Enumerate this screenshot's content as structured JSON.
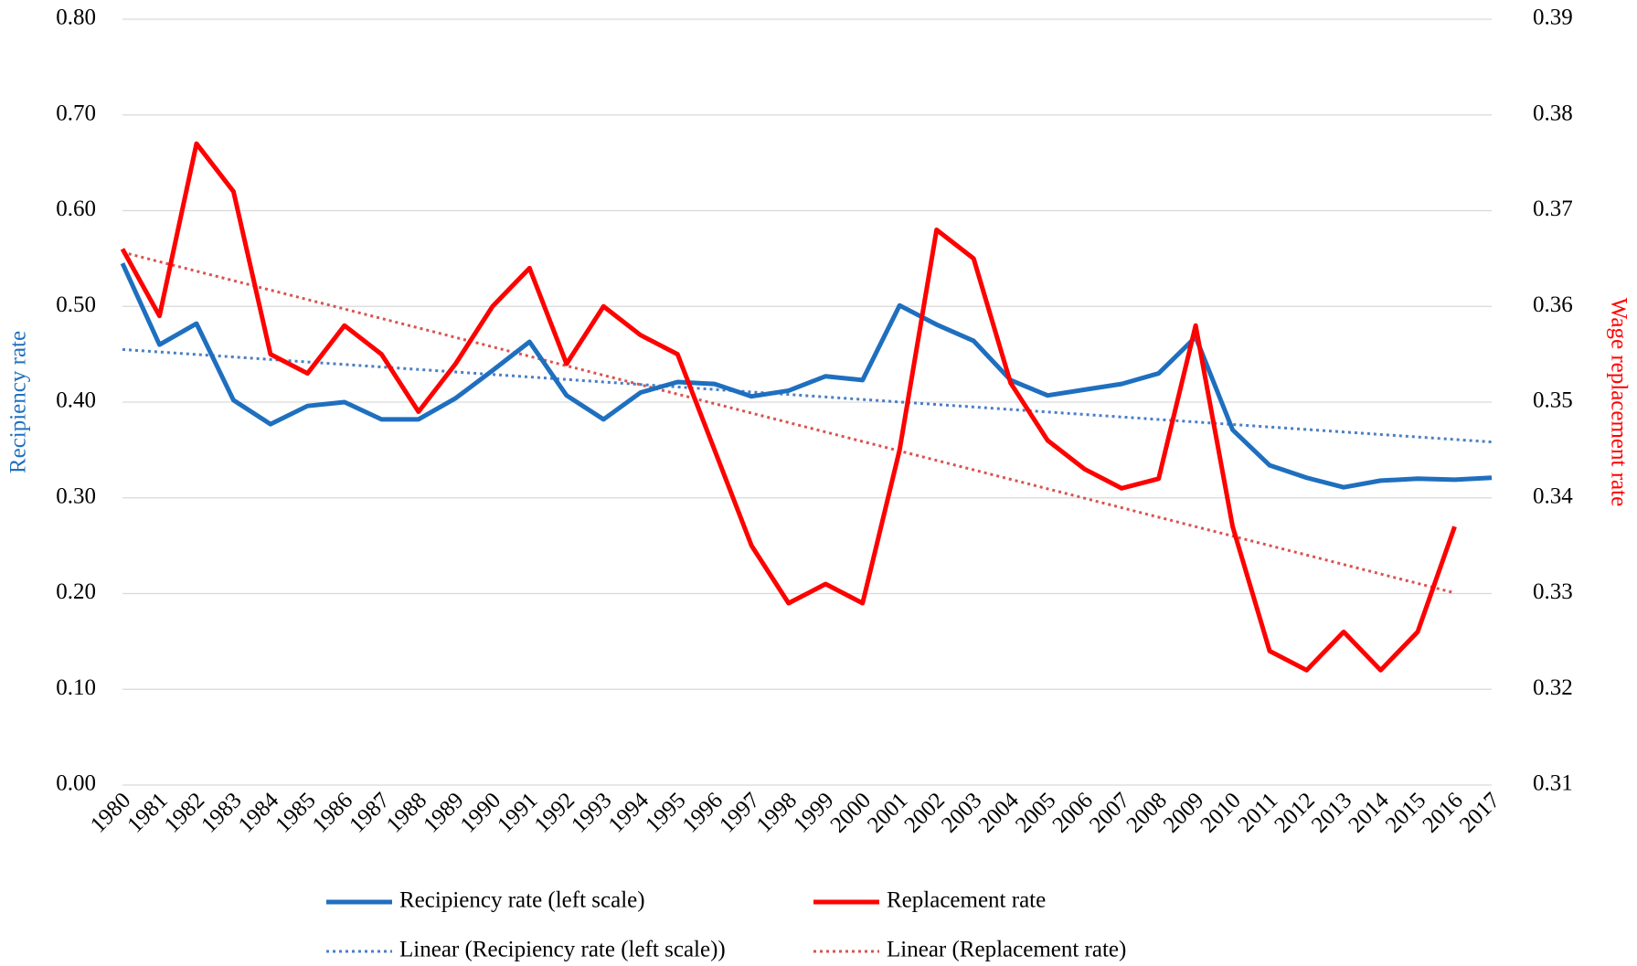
{
  "chart_data": {
    "type": "line",
    "categories": [
      "1980",
      "1981",
      "1982",
      "1983",
      "1984",
      "1985",
      "1986",
      "1987",
      "1988",
      "1989",
      "1990",
      "1991",
      "1992",
      "1993",
      "1994",
      "1995",
      "1996",
      "1997",
      "1998",
      "1999",
      "2000",
      "2001",
      "2002",
      "2003",
      "2004",
      "2005",
      "2006",
      "2007",
      "2008",
      "2009",
      "2010",
      "2011",
      "2012",
      "2013",
      "2014",
      "2015",
      "2016",
      "2017"
    ],
    "y_label": "Recipiency rate",
    "y2_label": "Wage replacement rate",
    "ylim": [
      0,
      0.8
    ],
    "yticks": [
      {
        "value": 0,
        "label": "0.00"
      },
      {
        "value": 0.1,
        "label": "0.10"
      },
      {
        "value": 0.2,
        "label": "0.20"
      },
      {
        "value": 0.3,
        "label": "0.30"
      },
      {
        "value": 0.4,
        "label": "0.40"
      },
      {
        "value": 0.5,
        "label": "0.50"
      },
      {
        "value": 0.6,
        "label": "0.60"
      },
      {
        "value": 0.7,
        "label": "0.70"
      },
      {
        "value": 0.8,
        "label": "0.80"
      }
    ],
    "y2lim": [
      0.31,
      0.39
    ],
    "y2ticks": [
      0.31,
      0.32,
      0.33,
      0.34,
      0.35,
      0.36,
      0.37,
      0.38,
      0.39
    ],
    "grid": true,
    "series": [
      {
        "name": "Recipiency rate (left scale)",
        "color": "#1f6fbf",
        "axis": "y",
        "values": [
          0.545,
          0.46,
          0.482,
          0.402,
          0.377,
          0.396,
          0.4,
          0.382,
          0.382,
          0.404,
          0.433,
          0.463,
          0.407,
          0.382,
          0.41,
          0.421,
          0.419,
          0.406,
          0.412,
          0.427,
          0.423,
          0.501,
          0.481,
          0.464,
          0.423,
          0.407,
          0.413,
          0.419,
          0.43,
          0.468,
          0.371,
          0.334,
          0.321,
          0.311,
          0.318,
          0.32,
          0.319,
          0.321
        ]
      },
      {
        "name": "Replacement rate",
        "color": "#ff0000",
        "axis": "y2",
        "values": [
          0.366,
          0.359,
          0.377,
          0.372,
          0.355,
          0.353,
          0.358,
          0.355,
          0.349,
          0.354,
          0.36,
          0.364,
          0.354,
          0.36,
          0.357,
          0.355,
          0.345,
          0.335,
          0.329,
          0.331,
          0.329,
          0.345,
          0.368,
          0.365,
          0.352,
          0.346,
          0.343,
          0.341,
          0.342,
          0.358,
          0.337,
          0.324,
          0.322,
          0.326,
          0.322,
          0.326,
          0.337,
          null
        ]
      }
    ],
    "trendlines": [
      {
        "name": "Linear (Recipiency rate (left scale))",
        "color": "#4a7fc4",
        "series": 0
      },
      {
        "name": "Linear (Replacement rate)",
        "color": "#d9534f",
        "series": 1
      }
    ]
  }
}
